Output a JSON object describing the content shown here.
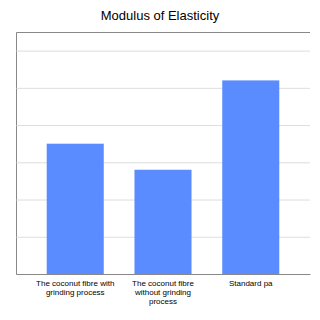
{
  "chart_data": {
    "type": "bar",
    "title": "Modulus of Elasticity",
    "categories": [
      "The coconut fibre with\ngrinding process",
      "The coconut fibre\nwithout grinding\nprocess",
      "Standard pa"
    ],
    "values": [
      3500,
      2800,
      5200
    ],
    "color": "#5B8CFF",
    "ylim": [
      0,
      6500
    ],
    "yticks": [
      0,
      1000,
      2000,
      3000,
      4000,
      5000,
      6000
    ],
    "grid": true,
    "tick_labels": "x"
  }
}
